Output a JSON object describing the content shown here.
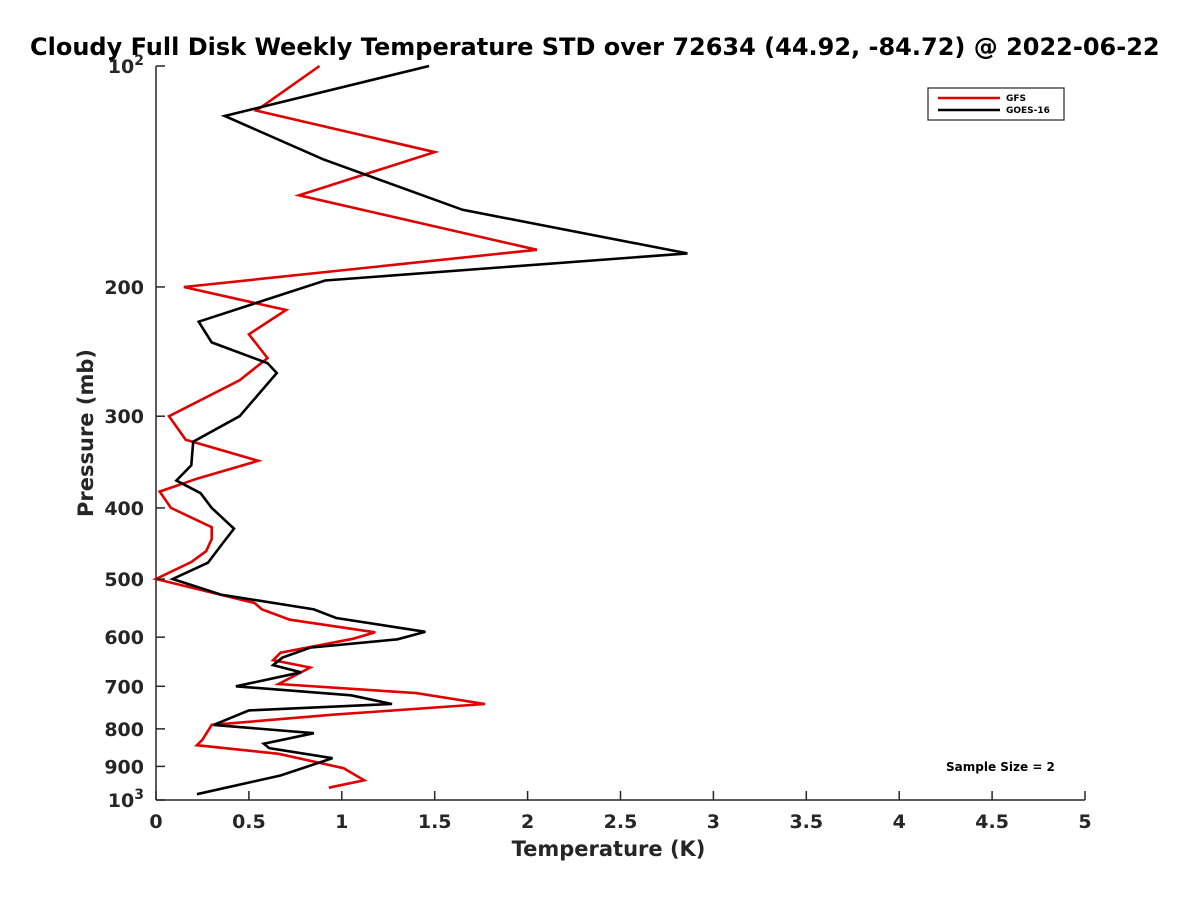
{
  "chart_data": {
    "type": "line",
    "title": "Cloudy Full Disk Weekly Temperature STD over 72634 (44.92, -84.72) @ 2022-06-22",
    "xlabel": "Temperature (K)",
    "ylabel": "Pressure (mb)",
    "xlim": [
      0,
      5
    ],
    "ylim": [
      100,
      1000
    ],
    "y_scale": "log",
    "y_reversed": true,
    "x_ticks": [
      0,
      0.5,
      1,
      1.5,
      2,
      2.5,
      3,
      3.5,
      4,
      4.5,
      5
    ],
    "x_tick_labels": [
      "0",
      "0.5",
      "1",
      "1.5",
      "2",
      "2.5",
      "3",
      "3.5",
      "4",
      "4.5",
      "5"
    ],
    "y_ticks": [
      100,
      200,
      300,
      400,
      500,
      600,
      700,
      800,
      900,
      1000
    ],
    "y_tick_labels": [
      {
        "base": "10",
        "exp": "2"
      },
      {
        "base": "200",
        "exp": ""
      },
      {
        "base": "300",
        "exp": ""
      },
      {
        "base": "400",
        "exp": ""
      },
      {
        "base": "500",
        "exp": ""
      },
      {
        "base": "600",
        "exp": ""
      },
      {
        "base": "700",
        "exp": ""
      },
      {
        "base": "800",
        "exp": ""
      },
      {
        "base": "900",
        "exp": ""
      },
      {
        "base": "10",
        "exp": "3"
      }
    ],
    "grid": false,
    "legend_position": "top-right",
    "annotation": "Sample Size = 2",
    "series": [
      {
        "name": "GFS",
        "color": "#e00000",
        "points": [
          [
            0.88,
            100
          ],
          [
            0.54,
            115
          ],
          [
            1.5,
            131
          ],
          [
            0.77,
            150
          ],
          [
            2.05,
            178
          ],
          [
            0.15,
            200
          ],
          [
            0.7,
            215
          ],
          [
            0.5,
            232
          ],
          [
            0.6,
            250
          ],
          [
            0.45,
            268
          ],
          [
            0.07,
            300
          ],
          [
            0.16,
            323
          ],
          [
            0.55,
            345
          ],
          [
            0.22,
            365
          ],
          [
            0.02,
            380
          ],
          [
            0.08,
            400
          ],
          [
            0.3,
            425
          ],
          [
            0.3,
            441
          ],
          [
            0.27,
            458
          ],
          [
            0.19,
            474
          ],
          [
            0.0,
            500
          ],
          [
            0.53,
            539
          ],
          [
            0.57,
            550
          ],
          [
            0.72,
            568
          ],
          [
            1.18,
            591
          ],
          [
            1.06,
            603
          ],
          [
            0.67,
            630
          ],
          [
            0.63,
            645
          ],
          [
            0.83,
            660
          ],
          [
            0.66,
            695
          ],
          [
            1.4,
            715
          ],
          [
            1.77,
            740
          ],
          [
            0.96,
            765
          ],
          [
            0.3,
            790
          ],
          [
            0.25,
            828
          ],
          [
            0.22,
            842
          ],
          [
            0.66,
            865
          ],
          [
            1.01,
            905
          ],
          [
            1.12,
            940
          ],
          [
            0.93,
            962
          ]
        ]
      },
      {
        "name": "GOES-16",
        "color": "#000000",
        "points": [
          [
            1.47,
            100
          ],
          [
            0.37,
            117
          ],
          [
            0.9,
            134
          ],
          [
            1.65,
            157
          ],
          [
            2.86,
            180
          ],
          [
            0.91,
            196
          ],
          [
            0.23,
            223
          ],
          [
            0.3,
            238
          ],
          [
            0.6,
            254
          ],
          [
            0.65,
            262
          ],
          [
            0.45,
            300
          ],
          [
            0.2,
            325
          ],
          [
            0.19,
            350
          ],
          [
            0.11,
            367
          ],
          [
            0.24,
            382
          ],
          [
            0.3,
            400
          ],
          [
            0.42,
            427
          ],
          [
            0.35,
            450
          ],
          [
            0.28,
            475
          ],
          [
            0.09,
            500
          ],
          [
            0.35,
            525
          ],
          [
            0.85,
            550
          ],
          [
            0.97,
            565
          ],
          [
            1.45,
            590
          ],
          [
            1.3,
            604
          ],
          [
            0.83,
            620
          ],
          [
            0.68,
            640
          ],
          [
            0.63,
            655
          ],
          [
            0.78,
            670
          ],
          [
            0.43,
            700
          ],
          [
            1.05,
            720
          ],
          [
            1.27,
            740
          ],
          [
            0.5,
            755
          ],
          [
            0.31,
            790
          ],
          [
            0.85,
            811
          ],
          [
            0.58,
            838
          ],
          [
            0.61,
            850
          ],
          [
            0.95,
            877
          ],
          [
            0.67,
            926
          ],
          [
            0.22,
            982
          ]
        ]
      }
    ]
  }
}
